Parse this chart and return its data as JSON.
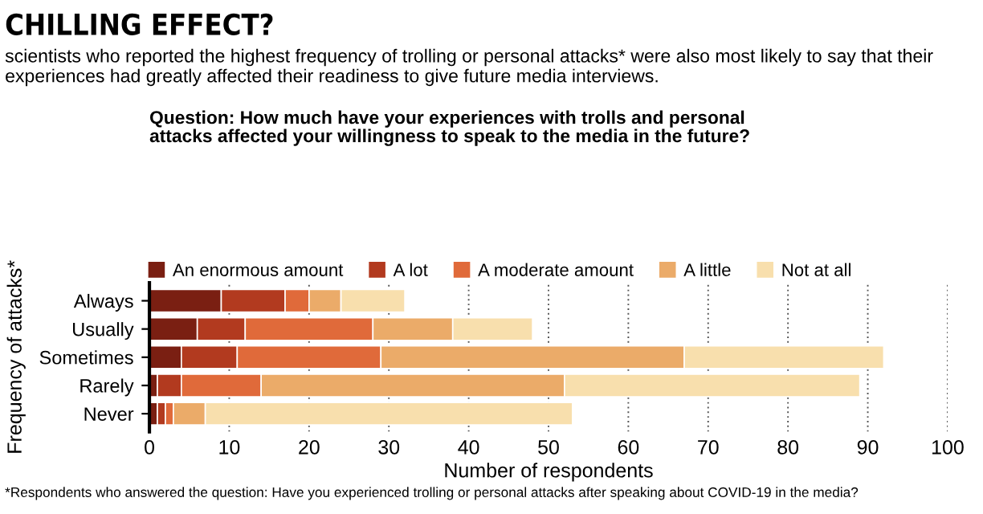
{
  "chart_data": {
    "type": "bar",
    "orientation": "horizontal",
    "stacked": true,
    "title": "CHILLING EFFECT?",
    "subtitle": "scientists who reported the highest frequency of trolling or personal attacks* were also most likely to say that their experiences had greatly affected their readiness to give future media interviews.",
    "annotations": [
      "Question: How much have your experiences with trolls and personal\nattacks affected your willingness to speak to the media in the future?",
      "*Respondents who answered the question: Have you experienced trolling or personal attacks after speaking about COVID-19 in the media?"
    ],
    "xlabel": "Number of respondents",
    "ylabel": "Frequency of attacks*",
    "categories": [
      "Always",
      "Usually",
      "Sometimes",
      "Rarely",
      "Never"
    ],
    "series": [
      {
        "name": "An enormous amount",
        "color": "#7a1f12",
        "values": [
          9,
          6,
          4,
          1,
          1
        ]
      },
      {
        "name": "A lot",
        "color": "#b23a1f",
        "values": [
          8,
          6,
          7,
          3,
          1
        ]
      },
      {
        "name": "A moderate amount",
        "color": "#e06a3a",
        "values": [
          3,
          16,
          18,
          10,
          1
        ]
      },
      {
        "name": "A little",
        "color": "#ebab69",
        "values": [
          4,
          10,
          38,
          38,
          4
        ]
      },
      {
        "name": "Not at all",
        "color": "#f8dfad",
        "values": [
          8,
          10,
          25,
          37,
          46
        ]
      }
    ],
    "xlim": [
      0,
      100
    ],
    "xticks": [
      0,
      10,
      20,
      30,
      40,
      50,
      60,
      70,
      80,
      90,
      100
    ],
    "grid": "x",
    "legend": "top"
  }
}
